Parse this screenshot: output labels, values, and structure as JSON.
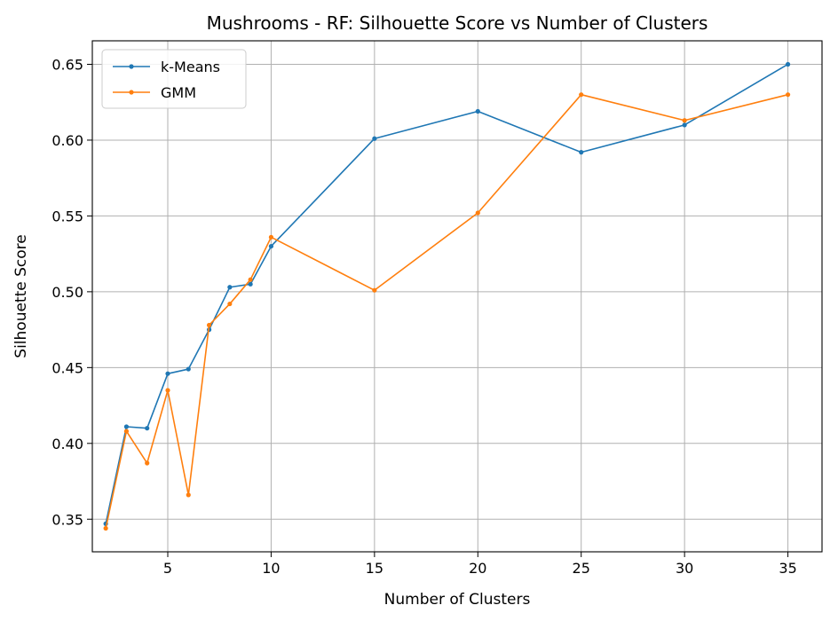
{
  "chart_data": {
    "type": "line",
    "title": "Mushrooms - RF: Silhouette Score vs Number of Clusters",
    "xlabel": "Number of Clusters",
    "ylabel": "Silhouette Score",
    "xlim": [
      1.35,
      36.65
    ],
    "ylim": [
      0.3285,
      0.6655
    ],
    "xticks": [
      5,
      10,
      15,
      20,
      25,
      30,
      35
    ],
    "xtick_labels": [
      "5",
      "10",
      "15",
      "20",
      "25",
      "30",
      "35"
    ],
    "yticks": [
      0.35,
      0.4,
      0.45,
      0.5,
      0.55,
      0.6,
      0.65
    ],
    "ytick_labels": [
      "0.35",
      "0.40",
      "0.45",
      "0.50",
      "0.55",
      "0.60",
      "0.65"
    ],
    "grid": true,
    "legend_position": "top-left",
    "x": [
      2,
      3,
      4,
      5,
      6,
      7,
      8,
      9,
      10,
      15,
      20,
      25,
      30,
      35
    ],
    "series": [
      {
        "name": "k-Means",
        "color": "#1f77b4",
        "values": [
          0.347,
          0.411,
          0.41,
          0.446,
          0.449,
          0.475,
          0.503,
          0.505,
          0.53,
          0.601,
          0.619,
          0.592,
          0.61,
          0.65
        ]
      },
      {
        "name": "GMM",
        "color": "#ff7f0e",
        "values": [
          0.344,
          0.408,
          0.387,
          0.435,
          0.366,
          0.478,
          0.492,
          0.508,
          0.536,
          0.501,
          0.552,
          0.63,
          0.613,
          0.63
        ]
      }
    ]
  }
}
